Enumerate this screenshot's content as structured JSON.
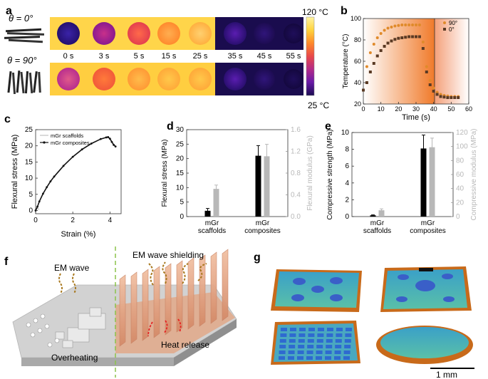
{
  "panel_letters": {
    "a": "a",
    "b": "b",
    "c": "c",
    "d": "d",
    "e": "e",
    "f": "f",
    "g": "g"
  },
  "panel_a": {
    "row1_label": "θ = 0°",
    "row2_label": "θ = 90°",
    "times": [
      "0 s",
      "3 s",
      "5 s",
      "15 s",
      "25 s",
      "35 s",
      "45 s",
      "55 s"
    ],
    "colorbar_max": "120 °C",
    "colorbar_min": "25 °C",
    "colorbar_colors": [
      "#fff3a0",
      "#ffd23c",
      "#ff8a2a",
      "#e8484a",
      "#b12a8a",
      "#6a1aa8",
      "#1a0c52"
    ]
  },
  "panel_f": {
    "em_wave": "EM wave",
    "em_shielding": "EM wave shielding",
    "overheating": "Overheating",
    "heat_release": "Heat release"
  },
  "panel_g": {
    "scale_bar": "1 mm"
  },
  "chart_data": [
    {
      "panel": "b",
      "type": "scatter",
      "xlabel": "Time (s)",
      "ylabel": "Temperature (°C)",
      "xlim": [
        0,
        60
      ],
      "ylim": [
        20,
        100
      ],
      "xticks": [
        "0",
        "10",
        "20",
        "30",
        "40",
        "50",
        "60"
      ],
      "yticks": [
        "20",
        "40",
        "60",
        "80",
        "100"
      ],
      "legend_position": "top-right",
      "series": [
        {
          "name": "90°",
          "color": "#e08a2a",
          "x": [
            0,
            2,
            4,
            6,
            8,
            10,
            12,
            14,
            16,
            18,
            20,
            22,
            24,
            26,
            28,
            30,
            32,
            34,
            36,
            38,
            40,
            42,
            44,
            46,
            48,
            50,
            52,
            54
          ],
          "y": [
            33,
            55,
            68,
            76,
            82,
            86,
            89,
            91,
            92,
            93,
            93.5,
            94,
            94,
            94,
            94,
            94,
            94,
            78,
            55,
            42,
            35,
            31,
            29,
            28,
            27.5,
            27,
            27,
            27
          ]
        },
        {
          "name": "0°",
          "color": "#5a3a24",
          "x": [
            0,
            2,
            4,
            6,
            8,
            10,
            12,
            14,
            16,
            18,
            20,
            22,
            24,
            26,
            28,
            30,
            32,
            34,
            36,
            38,
            40,
            42,
            44,
            46,
            48,
            50,
            52,
            54
          ],
          "y": [
            33,
            40,
            50,
            58,
            65,
            70,
            74,
            77,
            79,
            80.5,
            81.5,
            82,
            82.5,
            83,
            83,
            83,
            83,
            72,
            50,
            38,
            32,
            29,
            27,
            26.5,
            26,
            26,
            26,
            26
          ]
        }
      ]
    },
    {
      "panel": "c",
      "type": "line",
      "xlabel": "Strain (%)",
      "ylabel": "Flexural stress (MPa)",
      "xlim": [
        0,
        4.6
      ],
      "ylim": [
        -1,
        25
      ],
      "xticks": [
        "0",
        "2",
        "4"
      ],
      "yticks": [
        "0",
        "5",
        "10",
        "15",
        "20",
        "25"
      ],
      "legend_position": "top-left",
      "series": [
        {
          "name": "mGr scaffolds",
          "color": "#b5b5b5",
          "x": [
            0,
            0.05,
            0.1,
            0.15,
            0.2
          ],
          "y": [
            0,
            0.4,
            0.7,
            0.5,
            0.3
          ]
        },
        {
          "name": "mGr composites",
          "color": "#111111",
          "x": [
            0,
            0.1,
            0.2,
            0.4,
            0.6,
            0.8,
            1.0,
            1.5,
            2.0,
            2.5,
            3.0,
            3.5,
            3.8,
            3.9,
            4.0,
            4.1,
            4.2,
            4.3
          ],
          "y": [
            0,
            1.2,
            2.8,
            5.2,
            7.2,
            9.0,
            10.5,
            13.8,
            16.6,
            18.9,
            20.7,
            22.1,
            22.6,
            22.7,
            22.2,
            21.2,
            20.3,
            19.8
          ]
        }
      ]
    },
    {
      "panel": "d",
      "type": "bar",
      "categories": [
        "mGr\nscaffolds",
        "mGr\ncomposites"
      ],
      "ylabel": "Flexural stress (MPa)",
      "y2label": "Flexural modulus (GPa)",
      "ylim": [
        0,
        30
      ],
      "y2lim": [
        0,
        1.6
      ],
      "yticks": [
        "0",
        "5",
        "10",
        "15",
        "20",
        "25",
        "30"
      ],
      "y2ticks": [
        "0.0",
        "0.4",
        "0.8",
        "1.2",
        "1.6"
      ],
      "series": [
        {
          "name": "Flexural stress",
          "axis": "left",
          "color": "#000000",
          "values": [
            2.0,
            21.0
          ],
          "errors": [
            0.8,
            3.5
          ]
        },
        {
          "name": "Flexural modulus",
          "axis": "right",
          "color": "#b8b8b8",
          "values": [
            0.51,
            1.11
          ],
          "errors": [
            0.07,
            0.22
          ]
        }
      ]
    },
    {
      "panel": "e",
      "type": "bar",
      "categories": [
        "mGr\nscaffolds",
        "mGr\ncomposites"
      ],
      "ylabel": "Compressive strength (MPa)",
      "y2label": "Compressive modulus (MPa)",
      "ylim": [
        0,
        10
      ],
      "y2lim": [
        0,
        120
      ],
      "yticks": [
        "0",
        "2",
        "4",
        "6",
        "8",
        "10"
      ],
      "y2ticks": [
        "0",
        "20",
        "40",
        "60",
        "80",
        "100",
        "120"
      ],
      "series": [
        {
          "name": "Compressive strength",
          "axis": "left",
          "color": "#000000",
          "values": [
            0.15,
            8.1
          ],
          "errors": [
            0.05,
            1.6
          ]
        },
        {
          "name": "Compressive modulus",
          "axis": "right",
          "color": "#b8b8b8",
          "values": [
            9,
            99
          ],
          "errors": [
            2,
            13
          ]
        }
      ]
    }
  ]
}
